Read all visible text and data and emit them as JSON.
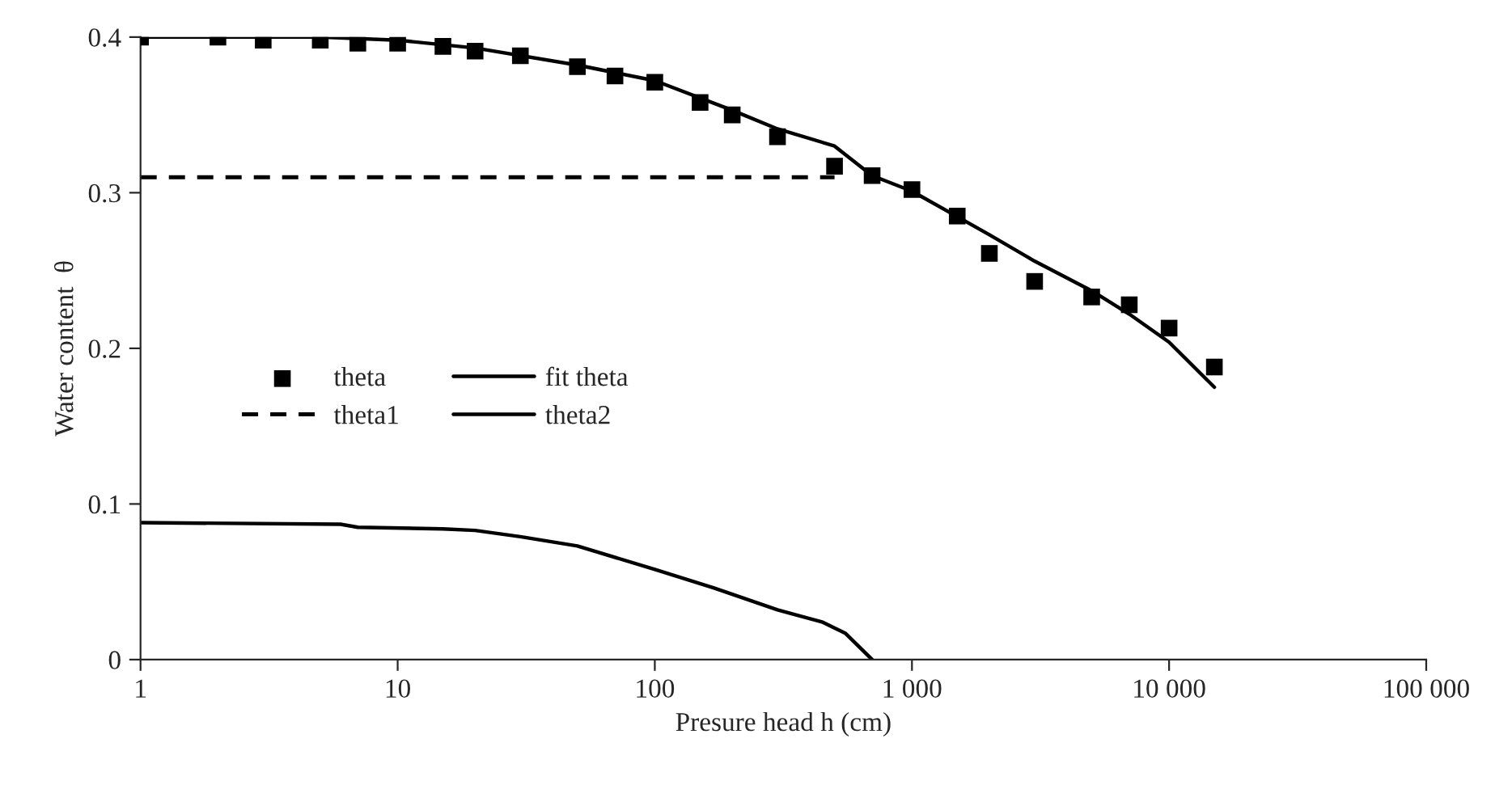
{
  "chart_data": {
    "type": "line",
    "xlabel": "Presure head h (cm)",
    "ylabel": "Water content  θ",
    "log": "x",
    "xlim": [
      1,
      100000
    ],
    "ylim": [
      0,
      0.4
    ],
    "xticks": [
      1,
      10,
      100,
      {
        "value": 1000,
        "label": "1 000"
      },
      {
        "value": 10000,
        "label": "10 000"
      },
      {
        "value": 100000,
        "label": "100 000"
      }
    ],
    "yticks": [
      0,
      0.1,
      0.2,
      0.3,
      0.4
    ],
    "grid": false,
    "legend": "left",
    "series": [
      {
        "name": "theta",
        "type": "scatter",
        "marker": "square",
        "color": "#000000",
        "x": [
          1,
          2,
          3,
          5,
          7,
          10,
          15,
          20,
          30,
          50,
          70,
          100,
          150,
          200,
          300,
          500,
          700,
          1000,
          1500,
          2000,
          3000,
          5000,
          7000,
          10000,
          15000
        ],
        "values": [
          0.4,
          0.4,
          0.398,
          0.398,
          0.396,
          0.396,
          0.394,
          0.391,
          0.388,
          0.381,
          0.375,
          0.371,
          0.358,
          0.35,
          0.336,
          0.317,
          0.311,
          0.302,
          0.285,
          0.261,
          0.243,
          0.233,
          0.228,
          0.213,
          0.188
        ]
      },
      {
        "name": "fit theta",
        "type": "line",
        "line_style": "solid",
        "color": "#000000",
        "x": [
          1,
          5,
          10,
          20,
          50,
          100,
          200,
          300,
          500,
          700,
          1000,
          2000,
          3000,
          5000,
          7000,
          10000,
          15000
        ],
        "values": [
          0.4,
          0.4,
          0.398,
          0.393,
          0.382,
          0.372,
          0.353,
          0.341,
          0.33,
          0.311,
          0.301,
          0.273,
          0.256,
          0.237,
          0.222,
          0.204,
          0.175
        ]
      },
      {
        "name": "theta1",
        "type": "line",
        "line_style": "dashed",
        "color": "#000000",
        "x": [
          1,
          500
        ],
        "values": [
          0.31,
          0.31
        ]
      },
      {
        "name": "theta2",
        "type": "line",
        "line_style": "solid",
        "color": "#000000",
        "x": [
          1,
          6,
          7,
          15,
          20,
          30,
          50,
          100,
          170,
          300,
          450,
          550,
          700
        ],
        "values": [
          0.088,
          0.087,
          0.085,
          0.084,
          0.083,
          0.079,
          0.073,
          0.058,
          0.046,
          0.032,
          0.024,
          0.017,
          0
        ]
      }
    ]
  }
}
